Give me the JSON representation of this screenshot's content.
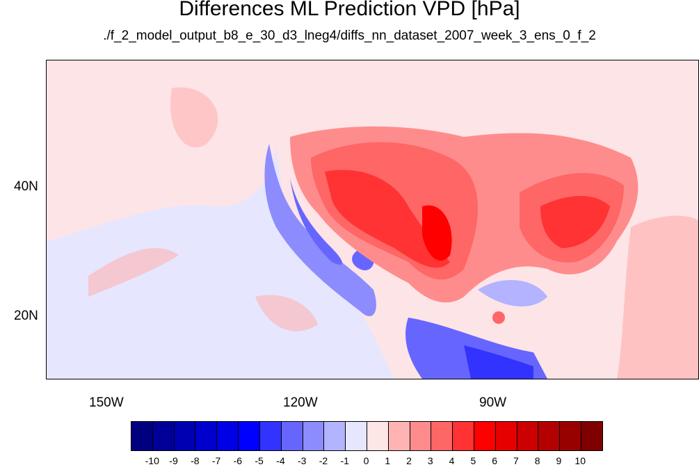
{
  "title": "Differences ML Prediction VPD [hPa]",
  "subtitle": "./f_2_model_output_b8_e_30_d3_lneg4/diffs_nn_dataset_2007_week_3_ens_0_f_2",
  "map": {
    "lat_labels": [
      "40N",
      "20N"
    ],
    "lon_labels": [
      "150W",
      "120W",
      "90W"
    ]
  },
  "colorbar": {
    "labels": [
      "-10",
      "-9",
      "-8",
      "-7",
      "-6",
      "-5",
      "-4",
      "-3",
      "-2",
      "-1",
      "0",
      "1",
      "2",
      "3",
      "4",
      "5",
      "6",
      "7",
      "8",
      "9",
      "10"
    ],
    "colors": [
      "#00007f",
      "#000099",
      "#0000b3",
      "#0000cc",
      "#0000e6",
      "#0000ff",
      "#3333ff",
      "#6666ff",
      "#8c8cff",
      "#b3b3ff",
      "#e6e6ff",
      "#ffe6e6",
      "#ffb3b3",
      "#ff8c8c",
      "#ff6666",
      "#ff3333",
      "#ff0000",
      "#e60000",
      "#cc0000",
      "#b30000",
      "#990000",
      "#7f0000"
    ]
  }
}
